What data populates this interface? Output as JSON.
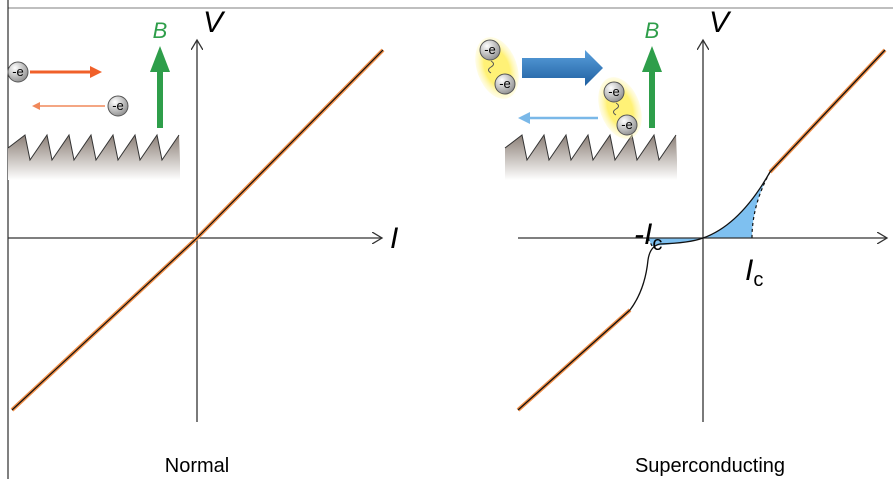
{
  "panels": [
    {
      "caption": "Normal",
      "field": "B",
      "y_axis": "V",
      "x_axis": "I",
      "charges": [
        "-e",
        "-e"
      ]
    },
    {
      "caption": "Superconducting",
      "field": "B",
      "y_axis": "V",
      "charges": [
        "-e",
        "-e",
        "-e",
        "-e"
      ],
      "critical_labels": [
        {
          "main": "-I",
          "sub": "c"
        },
        {
          "main": "I",
          "sub": "c"
        }
      ]
    }
  ]
}
